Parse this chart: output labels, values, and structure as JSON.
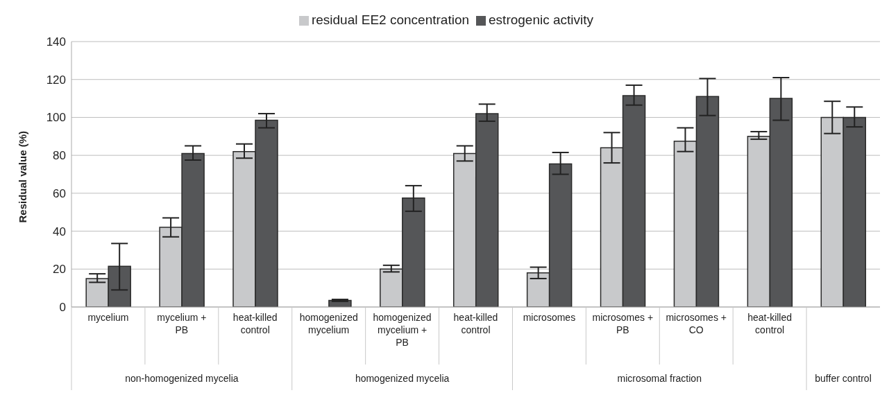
{
  "chart_data": {
    "type": "bar",
    "ylabel": "Residual value (%)",
    "categories": [
      "mycelium",
      "mycelium + PB",
      "heat-killed control",
      "homogenized mycelium",
      "homogenized mycelium + PB",
      "heat-killed control",
      "microsomes",
      "microsomes + PB",
      "microsomes + CO",
      "heat-killed control",
      null
    ],
    "series": [
      {
        "name": "residual EE2 concentration",
        "color": "#c8c9cb",
        "values": [
          15,
          42,
          82,
          0,
          20,
          81,
          18,
          84,
          87.5,
          90,
          100
        ],
        "errors": [
          [
            13,
            17.5
          ],
          [
            37,
            47
          ],
          [
            78.5,
            86
          ],
          null,
          [
            18.5,
            22
          ],
          [
            77,
            85
          ],
          [
            15,
            21
          ],
          [
            76,
            92
          ],
          [
            82,
            94.5
          ],
          [
            88.5,
            92.5
          ],
          [
            91.5,
            108.5
          ]
        ]
      },
      {
        "name": "estrogenic activity",
        "color": "#555658",
        "values": [
          21.5,
          81,
          98.5,
          3.5,
          57.5,
          102,
          75.5,
          111.5,
          111,
          110,
          100
        ],
        "errors": [
          [
            9,
            33.5
          ],
          [
            77.5,
            85
          ],
          [
            94.5,
            102
          ],
          [
            3,
            4
          ],
          [
            50.5,
            64
          ],
          [
            98,
            107
          ],
          [
            70,
            81.5
          ],
          [
            106.5,
            117
          ],
          [
            101,
            120.5
          ],
          [
            98.5,
            121
          ],
          [
            95,
            105.5
          ]
        ]
      }
    ],
    "annotations": [
      "non-homogenized mycelia",
      "homogenized mycelia",
      "microsomal fraction",
      "buffer control"
    ],
    "ylim": [
      0,
      140
    ],
    "yticks": [
      0,
      20,
      40,
      60,
      80,
      100,
      120,
      140
    ],
    "grid": "y",
    "legend": "top"
  }
}
